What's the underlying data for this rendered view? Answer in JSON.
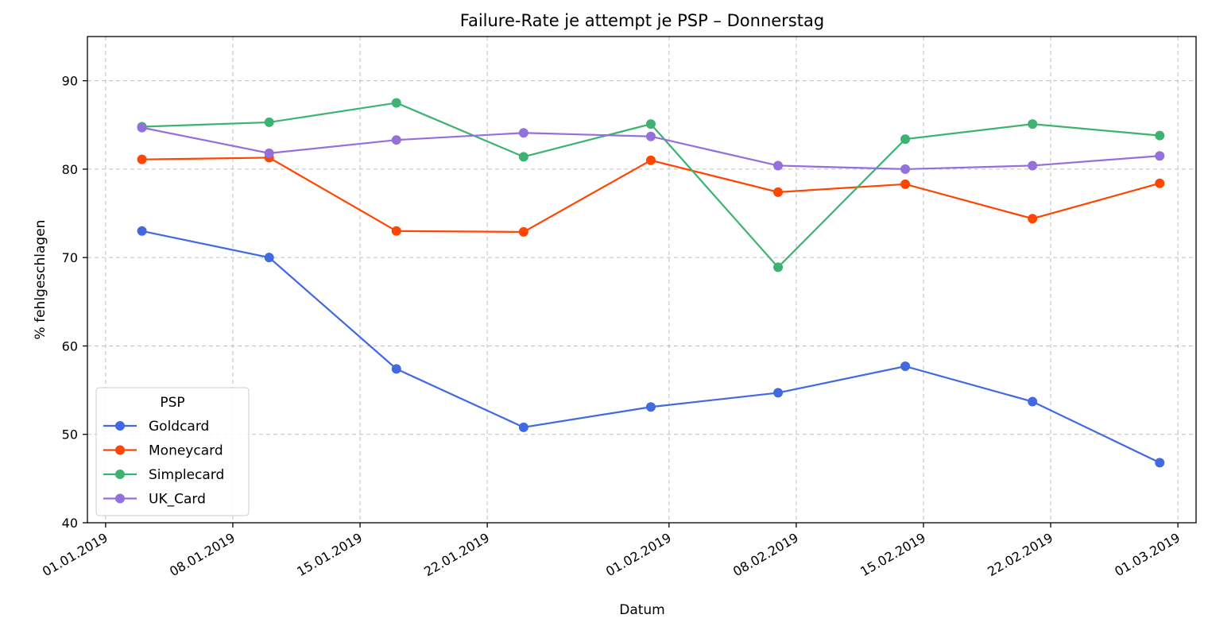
{
  "chart_data": {
    "type": "line",
    "title": "Failure-Rate je attempt je PSP – Donnerstag",
    "xlabel": "Datum",
    "ylabel": "% fehlgeschlagen",
    "x_tick_labels": [
      "01.01.2019",
      "08.01.2019",
      "15.01.2019",
      "22.01.2019",
      "01.02.2019",
      "08.02.2019",
      "15.02.2019",
      "22.02.2019",
      "01.03.2019"
    ],
    "x_tick_dates": [
      "2019-01-01",
      "2019-01-08",
      "2019-01-15",
      "2019-01-22",
      "2019-02-01",
      "2019-02-08",
      "2019-02-15",
      "2019-02-22",
      "2019-03-01"
    ],
    "x": [
      "2019-01-03",
      "2019-01-10",
      "2019-01-17",
      "2019-01-24",
      "2019-01-31",
      "2019-02-07",
      "2019-02-14",
      "2019-02-21",
      "2019-02-28"
    ],
    "ylim": [
      40,
      95
    ],
    "y_ticks": [
      40,
      50,
      60,
      70,
      80,
      90
    ],
    "xlim": [
      "2018-12-31",
      "2019-03-02"
    ],
    "grid": true,
    "legend": {
      "title": "PSP",
      "position": "lower-left"
    },
    "series": [
      {
        "name": "Goldcard",
        "color": "#4169e1",
        "values": [
          73.0,
          70.0,
          57.4,
          50.8,
          53.1,
          54.7,
          57.7,
          53.7,
          46.8
        ]
      },
      {
        "name": "Moneycard",
        "color": "#ff4500",
        "values": [
          81.1,
          81.3,
          73.0,
          72.9,
          81.0,
          77.4,
          78.3,
          74.4,
          78.4
        ]
      },
      {
        "name": "Simplecard",
        "color": "#3cb371",
        "values": [
          84.8,
          85.3,
          87.5,
          81.4,
          85.1,
          68.9,
          83.4,
          85.1,
          83.8
        ]
      },
      {
        "name": "UK_Card",
        "color": "#9370db",
        "values": [
          84.7,
          81.8,
          83.3,
          84.1,
          83.7,
          80.4,
          80.0,
          80.4,
          81.5
        ]
      }
    ]
  }
}
